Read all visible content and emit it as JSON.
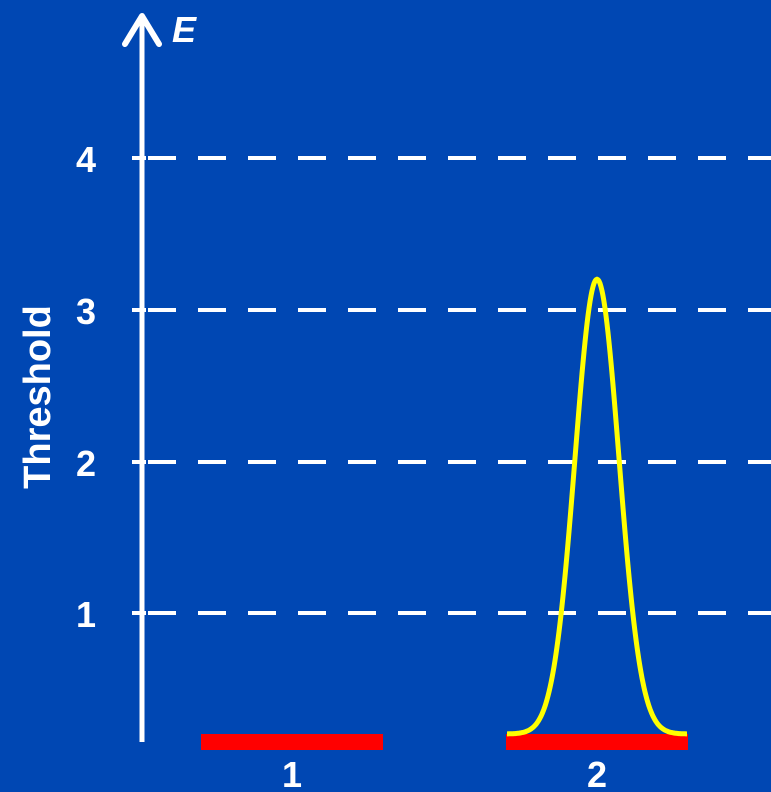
{
  "axis": {
    "y_label": "E",
    "side_label": "Threshold"
  },
  "levels": [
    "1",
    "2",
    "3",
    "4"
  ],
  "sites": [
    "1",
    "2"
  ],
  "colors": {
    "background": "#0047b3",
    "axis": "#ffffff",
    "threshold_lines": "#ffffff",
    "site_bar": "#ff0000",
    "pulse": "#ffff00"
  },
  "pulse": {
    "site": "2",
    "peak_level": 3.2
  }
}
